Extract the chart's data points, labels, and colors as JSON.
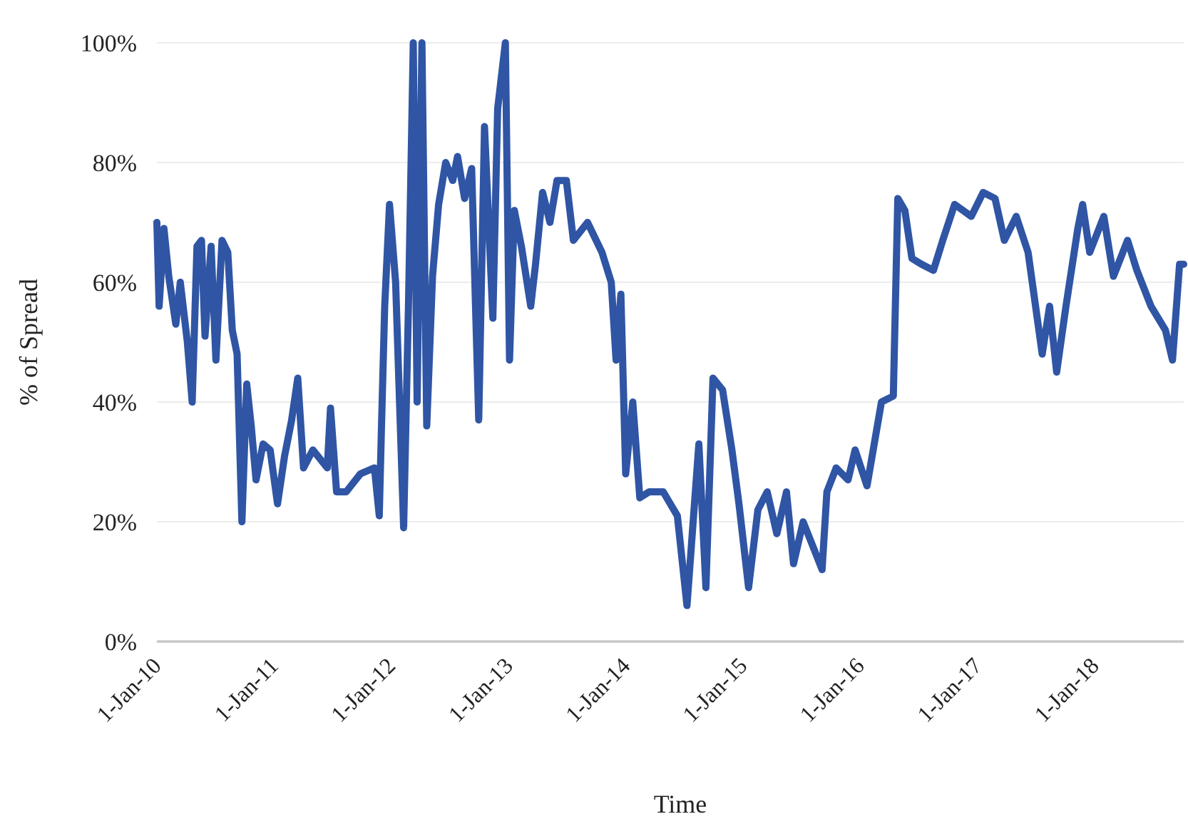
{
  "chart_data": {
    "type": "line",
    "xlabel": "Time",
    "ylabel": "% of Spread",
    "xlim": [
      "2010-01-01",
      "2018-10-06"
    ],
    "xticks": [
      {
        "value": "2010-01-01",
        "label": "1-Jan-10"
      },
      {
        "value": "2011-01-01",
        "label": "1-Jan-11"
      },
      {
        "value": "2012-01-01",
        "label": "1-Jan-12"
      },
      {
        "value": "2013-01-01",
        "label": "1-Jan-13"
      },
      {
        "value": "2014-01-01",
        "label": "1-Jan-14"
      },
      {
        "value": "2015-01-01",
        "label": "1-Jan-15"
      },
      {
        "value": "2016-01-01",
        "label": "1-Jan-16"
      },
      {
        "value": "2017-01-01",
        "label": "1-Jan-17"
      },
      {
        "value": "2018-01-01",
        "label": "1-Jan-18"
      }
    ],
    "ylim": [
      0,
      100
    ],
    "yticks": [
      {
        "value": 0,
        "label": "0%"
      },
      {
        "value": 20,
        "label": "20%"
      },
      {
        "value": 40,
        "label": "40%"
      },
      {
        "value": 60,
        "label": "60%"
      },
      {
        "value": 80,
        "label": "80%"
      },
      {
        "value": 100,
        "label": "100%"
      }
    ],
    "grid": "y",
    "marker": "none",
    "line_style": "solid",
    "x": [
      "2010-01-01",
      "2010-01-08",
      "2010-01-23",
      "2010-02-07",
      "2010-03-01",
      "2010-03-15",
      "2010-04-06",
      "2010-04-21",
      "2010-05-06",
      "2010-05-20",
      "2010-05-31",
      "2010-06-19",
      "2010-07-04",
      "2010-07-23",
      "2010-08-10",
      "2010-08-24",
      "2010-09-08",
      "2010-09-23",
      "2010-10-08",
      "2010-10-22",
      "2010-11-06",
      "2010-11-28",
      "2010-12-20",
      "2011-01-12",
      "2011-02-03",
      "2011-02-25",
      "2011-03-16",
      "2011-04-03",
      "2011-05-02",
      "2011-06-16",
      "2011-06-26",
      "2011-07-15",
      "2011-08-14",
      "2011-09-27",
      "2011-11-10",
      "2011-11-25",
      "2011-12-02",
      "2011-12-12",
      "2011-12-27",
      "2012-01-15",
      "2012-02-09",
      "2012-02-24",
      "2012-03-10",
      "2012-03-22",
      "2012-04-06",
      "2012-04-21",
      "2012-05-09",
      "2012-05-28",
      "2012-06-19",
      "2012-07-11",
      "2012-07-26",
      "2012-08-17",
      "2012-09-08",
      "2012-09-30",
      "2012-10-18",
      "2012-11-13",
      "2012-11-28",
      "2012-12-22",
      "2013-01-04",
      "2013-01-19",
      "2013-02-10",
      "2013-03-11",
      "2013-03-26",
      "2013-04-17",
      "2013-05-10",
      "2013-06-01",
      "2013-06-30",
      "2013-07-22",
      "2013-09-04",
      "2013-10-19",
      "2013-11-17",
      "2013-12-02",
      "2013-12-17",
      "2014-01-01",
      "2014-01-23",
      "2014-02-14",
      "2014-03-15",
      "2014-04-28",
      "2014-06-11",
      "2014-07-11",
      "2014-08-17",
      "2014-09-08",
      "2014-09-30",
      "2014-10-30",
      "2014-11-28",
      "2014-12-20",
      "2015-01-19",
      "2015-02-17",
      "2015-03-18",
      "2015-04-17",
      "2015-05-17",
      "2015-06-08",
      "2015-07-08",
      "2015-08-14",
      "2015-09-05",
      "2015-09-20",
      "2015-10-19",
      "2015-11-25",
      "2015-12-17",
      "2016-01-23",
      "2016-03-08",
      "2016-04-14",
      "2016-04-28",
      "2016-05-20",
      "2016-06-11",
      "2016-07-11",
      "2016-08-17",
      "2016-09-15",
      "2016-10-22",
      "2016-12-13",
      "2017-01-19",
      "2017-02-25",
      "2017-03-26",
      "2017-05-02",
      "2017-06-08",
      "2017-07-22",
      "2017-08-14",
      "2017-09-05",
      "2017-10-04",
      "2017-11-10",
      "2017-11-25",
      "2017-12-17",
      "2018-01-30",
      "2018-03-01",
      "2018-04-14",
      "2018-05-13",
      "2018-06-26",
      "2018-08-10",
      "2018-09-01",
      "2018-09-23",
      "2018-10-06"
    ],
    "series": [
      {
        "color": "#2f55a4",
        "values": [
          70,
          56,
          69,
          61,
          53,
          60,
          50,
          40,
          66,
          67,
          51,
          66,
          47,
          67,
          65,
          52,
          48,
          20,
          43,
          36,
          27,
          33,
          32,
          23,
          31,
          37,
          44,
          29,
          32,
          29,
          39,
          25,
          25,
          28,
          29,
          21,
          36,
          56,
          73,
          60,
          19,
          56,
          100,
          40,
          100,
          36,
          61,
          73,
          80,
          77,
          81,
          74,
          79,
          37,
          86,
          54,
          89,
          100,
          47,
          72,
          66,
          56,
          63,
          75,
          70,
          77,
          77,
          67,
          70,
          65,
          60,
          47,
          58,
          28,
          40,
          24,
          25,
          25,
          21,
          6,
          33,
          9,
          44,
          42,
          32,
          23,
          9,
          22,
          25,
          18,
          25,
          13,
          20,
          15,
          12,
          25,
          29,
          27,
          32,
          26,
          40,
          41,
          74,
          72,
          64,
          63,
          62,
          67,
          73,
          71,
          75,
          74,
          67,
          71,
          65,
          48,
          56,
          45,
          56,
          69,
          73,
          65,
          71,
          61,
          67,
          62,
          56,
          52,
          47,
          63,
          63
        ]
      }
    ]
  }
}
